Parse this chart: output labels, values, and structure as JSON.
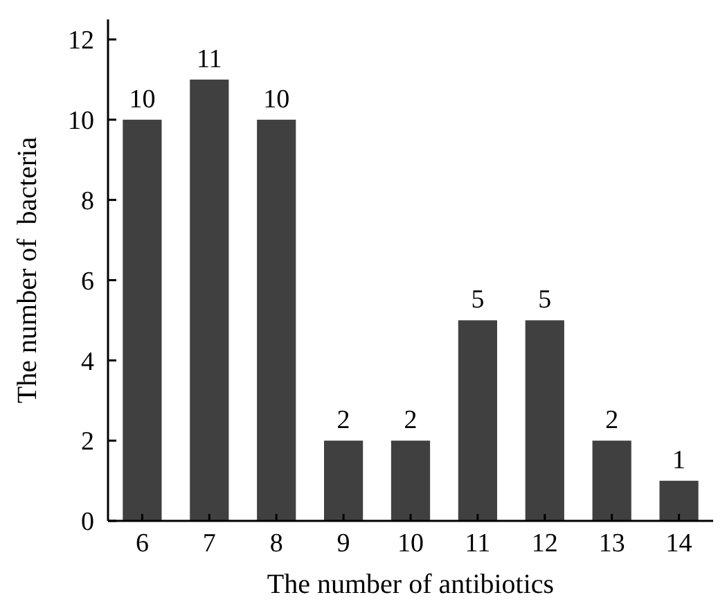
{
  "chart_data": {
    "type": "bar",
    "xlabel": "The number of antibiotics",
    "ylabel": "The number of  bacteria",
    "categories": [
      "6",
      "7",
      "8",
      "9",
      "10",
      "11",
      "12",
      "13",
      "14"
    ],
    "values": [
      10,
      11,
      10,
      2,
      2,
      5,
      5,
      2,
      1
    ],
    "color": "#404040",
    "ylim": [
      0,
      12.5
    ],
    "yticks": [
      0,
      2,
      4,
      6,
      8,
      10,
      12
    ],
    "grid": false,
    "data_labels": true
  }
}
